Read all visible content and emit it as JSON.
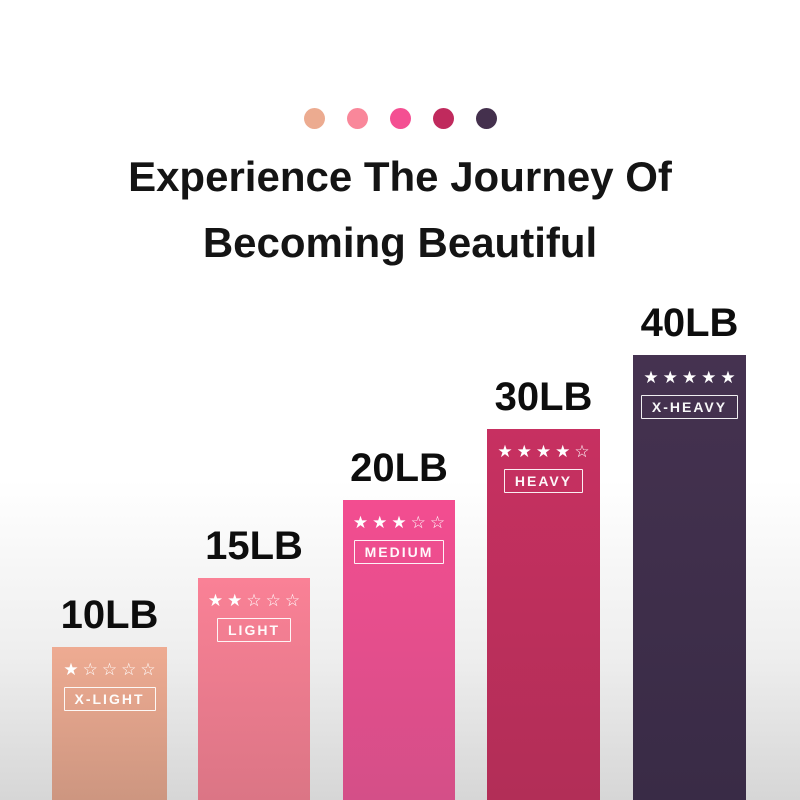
{
  "chart_data": {
    "type": "bar",
    "title": "Experience The Journey Of Becoming Beautiful",
    "title_lines": [
      "Experience The Journey Of",
      "Becoming Beautiful"
    ],
    "unit": "LB",
    "categories": [
      "X-LIGHT",
      "LIGHT",
      "MEDIUM",
      "HEAVY",
      "X-HEAVY"
    ],
    "values": [
      10,
      15,
      20,
      30,
      40
    ],
    "legend_position": "top",
    "grid": false,
    "legend_dots": [
      {
        "label": "x-light",
        "color": "#ecab90"
      },
      {
        "label": "light",
        "color": "#f9879a"
      },
      {
        "label": "medium",
        "color": "#f44f92"
      },
      {
        "label": "heavy",
        "color": "#c02a5d"
      },
      {
        "label": "x-heavy",
        "color": "#44304d"
      }
    ],
    "bars": [
      {
        "weight": "10LB",
        "level": "X-LIGHT",
        "rating": 1,
        "rating_max": 5,
        "stars": "★☆☆☆☆",
        "color_top": "#eeab92",
        "color_bottom": "#cd9680"
      },
      {
        "weight": "15LB",
        "level": "LIGHT",
        "rating": 2,
        "rating_max": 5,
        "stars": "★★☆☆☆",
        "color_top": "#fa8196",
        "color_bottom": "#db7585"
      },
      {
        "weight": "20LB",
        "level": "MEDIUM",
        "rating": 3,
        "rating_max": 5,
        "stars": "★★★☆☆",
        "color_top": "#f34d90",
        "color_bottom": "#d44f88"
      },
      {
        "weight": "30LB",
        "level": "HEAVY",
        "rating": 4,
        "rating_max": 5,
        "stars": "★★★★☆",
        "color_top": "#c73061",
        "color_bottom": "#b22e57"
      },
      {
        "weight": "40LB",
        "level": "X-HEAVY",
        "rating": 5,
        "rating_max": 5,
        "stars": "★★★★★",
        "color_top": "#453250",
        "color_bottom": "#392b46"
      }
    ],
    "background_top": "#ffffff",
    "background_bottom": "#d6d6d6"
  }
}
